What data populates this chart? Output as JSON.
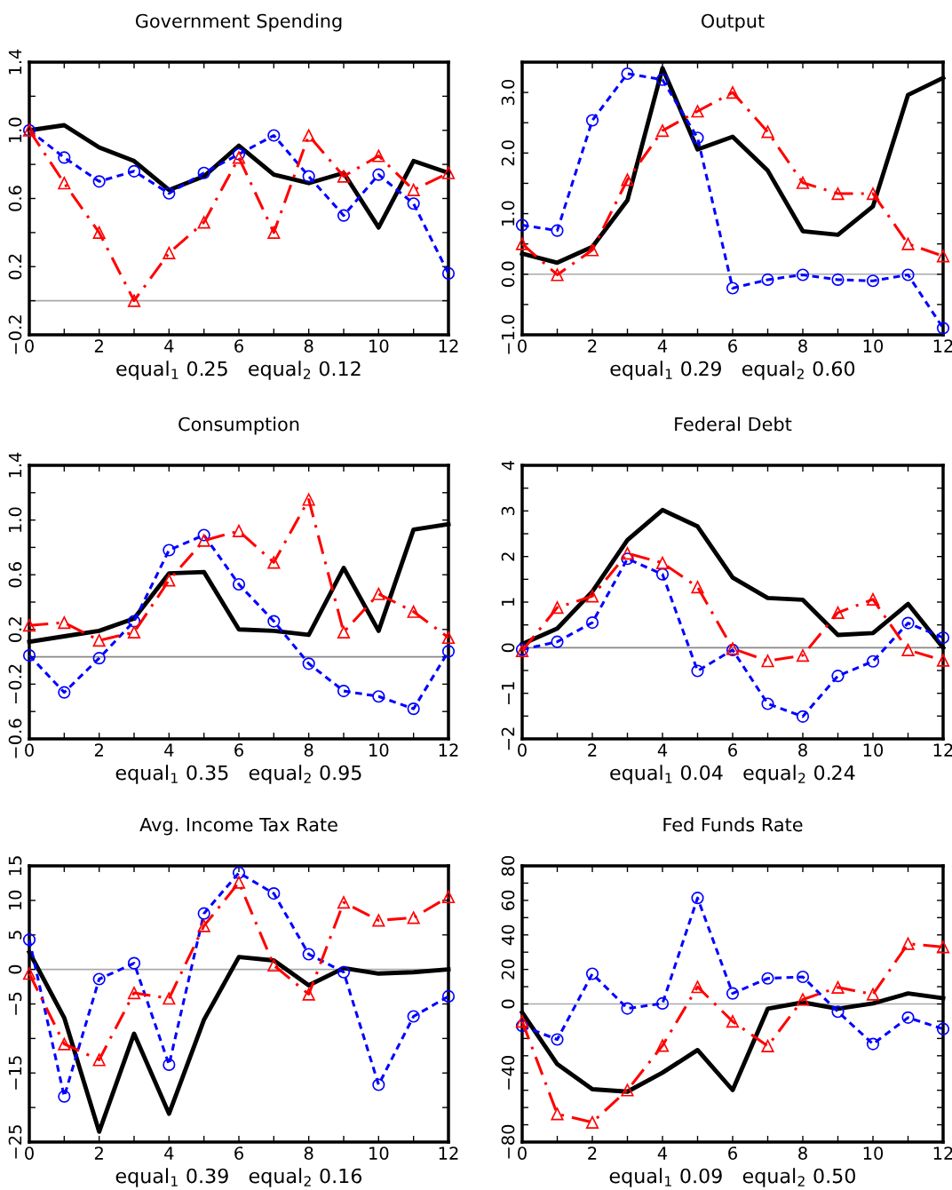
{
  "chart_data": [
    {
      "type": "line",
      "title": "Government Spending",
      "xlabel": "equal$_{1}$ 0.25   equal$_{2}$ 0.12",
      "x": [
        0,
        1,
        2,
        3,
        4,
        5,
        6,
        7,
        8,
        9,
        10,
        11,
        12
      ],
      "xlim": [
        0,
        12
      ],
      "xticks": [
        0,
        {
          "value": 1,
          "label": null
        },
        2,
        {
          "value": 3,
          "label": null
        },
        4,
        {
          "value": 5,
          "label": null
        },
        6,
        {
          "value": 7,
          "label": null
        },
        8,
        {
          "value": 9,
          "label": null
        },
        10,
        {
          "value": 11,
          "label": null
        },
        12
      ],
      "ylim": [
        -0.2,
        1.4
      ],
      "yticks": [
        {
          "value": -0.2,
          "label": "−0.2"
        },
        {
          "value": 0.0,
          "label": null
        },
        0.2,
        {
          "value": 0.4,
          "label": null
        },
        0.6,
        {
          "value": 0.8,
          "label": null
        },
        {
          "value": 1.0,
          "label": "1.0"
        },
        {
          "value": 1.2,
          "label": null
        },
        1.4
      ],
      "ref_lines": [
        {
          "axis": "y",
          "value": 0,
          "color": "#aaaaaa"
        }
      ],
      "series": [
        {
          "color": "#000000",
          "line_style": "solid",
          "marker": "none",
          "values": [
            1.0,
            1.03,
            0.9,
            0.82,
            0.65,
            0.73,
            0.91,
            0.74,
            0.69,
            0.75,
            0.43,
            0.82,
            0.75
          ]
        },
        {
          "color": "#0000ff",
          "line_style": "dotted",
          "marker": "circle",
          "values": [
            1.0,
            0.84,
            0.7,
            0.76,
            0.63,
            0.75,
            0.86,
            0.97,
            0.73,
            0.5,
            0.74,
            0.57,
            0.16
          ]
        },
        {
          "color": "#ff0000",
          "line_style": "dashed",
          "marker": "triangle",
          "values": [
            1.0,
            0.69,
            0.4,
            0.0,
            0.28,
            0.46,
            0.84,
            0.4,
            0.97,
            0.73,
            0.85,
            0.65,
            0.75
          ]
        }
      ]
    },
    {
      "type": "line",
      "title": "Output",
      "xlabel": "equal$_{1}$ 0.29   equal$_{2}$ 0.60",
      "x": [
        0,
        1,
        2,
        3,
        4,
        5,
        6,
        7,
        8,
        9,
        10,
        11,
        12
      ],
      "xlim": [
        0,
        12
      ],
      "xticks": [
        0,
        {
          "value": 1,
          "label": null
        },
        2,
        {
          "value": 3,
          "label": null
        },
        4,
        {
          "value": 5,
          "label": null
        },
        6,
        {
          "value": 7,
          "label": null
        },
        8,
        {
          "value": 9,
          "label": null
        },
        10,
        {
          "value": 11,
          "label": null
        },
        12
      ],
      "ylim": [
        -1.0,
        3.5
      ],
      "yticks": [
        {
          "value": -1.0,
          "label": "−1.0"
        },
        {
          "value": -0.5,
          "label": null
        },
        {
          "value": 0.0,
          "label": "0.0"
        },
        {
          "value": 0.5,
          "label": null
        },
        {
          "value": 1.0,
          "label": "1.0"
        },
        {
          "value": 1.5,
          "label": null
        },
        {
          "value": 2.0,
          "label": "2.0"
        },
        {
          "value": 2.5,
          "label": null
        },
        {
          "value": 3.0,
          "label": "3.0"
        }
      ],
      "ref_lines": [
        {
          "axis": "y",
          "value": 0,
          "color": "#aaaaaa"
        }
      ],
      "series": [
        {
          "color": "#000000",
          "line_style": "solid",
          "marker": "none",
          "values": [
            0.34,
            0.19,
            0.45,
            1.22,
            3.4,
            2.06,
            2.27,
            1.71,
            0.71,
            0.65,
            1.12,
            2.96,
            3.24
          ]
        },
        {
          "color": "#0000ff",
          "line_style": "dotted",
          "marker": "circle",
          "values": [
            0.81,
            0.72,
            2.54,
            3.31,
            3.21,
            2.25,
            -0.23,
            -0.09,
            -0.01,
            -0.09,
            -0.11,
            -0.01,
            -0.89
          ]
        },
        {
          "color": "#ff0000",
          "line_style": "dashed",
          "marker": "triangle",
          "values": [
            0.5,
            -0.01,
            0.4,
            1.56,
            2.37,
            2.69,
            3.0,
            2.35,
            1.51,
            1.33,
            1.33,
            0.5,
            0.3
          ]
        }
      ]
    },
    {
      "type": "line",
      "title": "Consumption",
      "xlabel": "equal$_{1}$ 0.35   equal$_{2}$ 0.95",
      "x": [
        0,
        1,
        2,
        3,
        4,
        5,
        6,
        7,
        8,
        9,
        10,
        11,
        12
      ],
      "xlim": [
        0,
        12
      ],
      "xticks": [
        0,
        {
          "value": 1,
          "label": null
        },
        2,
        {
          "value": 3,
          "label": null
        },
        4,
        {
          "value": 5,
          "label": null
        },
        6,
        {
          "value": 7,
          "label": null
        },
        8,
        {
          "value": 9,
          "label": null
        },
        10,
        {
          "value": 11,
          "label": null
        },
        12
      ],
      "ylim": [
        -0.6,
        1.4
      ],
      "yticks": [
        {
          "value": -0.6,
          "label": "−0.6"
        },
        {
          "value": -0.4,
          "label": null
        },
        {
          "value": -0.2,
          "label": "−0.2"
        },
        {
          "value": 0.0,
          "label": null
        },
        0.2,
        {
          "value": 0.4,
          "label": null
        },
        0.6,
        {
          "value": 0.8,
          "label": null
        },
        {
          "value": 1.0,
          "label": "1.0"
        },
        {
          "value": 1.2,
          "label": null
        },
        1.4
      ],
      "ref_lines": [
        {
          "axis": "y",
          "value": 0,
          "color": "#888888"
        }
      ],
      "series": [
        {
          "color": "#000000",
          "line_style": "solid",
          "marker": "none",
          "values": [
            0.11,
            0.15,
            0.19,
            0.28,
            0.61,
            0.62,
            0.2,
            0.19,
            0.16,
            0.65,
            0.19,
            0.93,
            0.97
          ]
        },
        {
          "color": "#0000ff",
          "line_style": "dotted",
          "marker": "circle",
          "values": [
            0.01,
            -0.26,
            -0.01,
            0.26,
            0.78,
            0.89,
            0.53,
            0.26,
            -0.05,
            -0.25,
            -0.29,
            -0.38,
            0.04
          ]
        },
        {
          "color": "#ff0000",
          "line_style": "dashed",
          "marker": "triangle",
          "values": [
            0.23,
            0.25,
            0.12,
            0.18,
            0.56,
            0.85,
            0.92,
            0.69,
            1.15,
            0.18,
            0.46,
            0.33,
            0.14
          ]
        }
      ]
    },
    {
      "type": "line",
      "title": "Federal Debt",
      "xlabel": "equal$_{1}$ 0.04   equal$_{2}$ 0.24",
      "x": [
        0,
        1,
        2,
        3,
        4,
        5,
        6,
        7,
        8,
        9,
        10,
        11,
        12
      ],
      "xlim": [
        0,
        12
      ],
      "xticks": [
        0,
        {
          "value": 1,
          "label": null
        },
        2,
        {
          "value": 3,
          "label": null
        },
        4,
        {
          "value": 5,
          "label": null
        },
        6,
        {
          "value": 7,
          "label": null
        },
        8,
        {
          "value": 9,
          "label": null
        },
        10,
        {
          "value": 11,
          "label": null
        },
        12
      ],
      "ylim": [
        -2,
        4
      ],
      "yticks": [
        {
          "value": -2,
          "label": "−2"
        },
        {
          "value": -1.5,
          "label": null
        },
        {
          "value": -1,
          "label": "−1"
        },
        {
          "value": -0.5,
          "label": null
        },
        0,
        {
          "value": 0.5,
          "label": null
        },
        1,
        {
          "value": 1.5,
          "label": null
        },
        2,
        {
          "value": 2.5,
          "label": null
        },
        3,
        {
          "value": 3.5,
          "label": null
        },
        4
      ],
      "ref_lines": [
        {
          "axis": "y",
          "value": 0,
          "color": "#888888"
        }
      ],
      "series": [
        {
          "color": "#000000",
          "line_style": "solid",
          "marker": "none",
          "values": [
            0.08,
            0.42,
            1.23,
            2.36,
            3.02,
            2.66,
            1.54,
            1.09,
            1.05,
            0.28,
            0.32,
            0.96,
            0.0
          ]
        },
        {
          "color": "#0000ff",
          "line_style": "dotted",
          "marker": "circle",
          "values": [
            -0.04,
            0.13,
            0.55,
            1.95,
            1.61,
            -0.51,
            -0.05,
            -1.23,
            -1.51,
            -0.62,
            -0.3,
            0.54,
            0.22
          ]
        },
        {
          "color": "#ff0000",
          "line_style": "dashed",
          "marker": "triangle",
          "values": [
            -0.07,
            0.88,
            1.13,
            2.07,
            1.86,
            1.33,
            -0.02,
            -0.29,
            -0.17,
            0.77,
            1.06,
            -0.05,
            -0.28
          ]
        }
      ]
    },
    {
      "type": "line",
      "title": "Avg. Income Tax Rate",
      "xlabel": "equal$_{1}$ 0.39   equal$_{2}$ 0.16",
      "x": [
        0,
        1,
        2,
        3,
        4,
        5,
        6,
        7,
        8,
        9,
        10,
        11,
        12
      ],
      "xlim": [
        0,
        12
      ],
      "xticks": [
        0,
        {
          "value": 1,
          "label": null
        },
        2,
        {
          "value": 3,
          "label": null
        },
        4,
        {
          "value": 5,
          "label": null
        },
        6,
        {
          "value": 7,
          "label": null
        },
        8,
        {
          "value": 9,
          "label": null
        },
        10,
        {
          "value": 11,
          "label": null
        },
        12
      ],
      "ylim": [
        -25,
        15
      ],
      "yticks": [
        {
          "value": -25,
          "label": "−25"
        },
        {
          "value": -20,
          "label": null
        },
        {
          "value": -15,
          "label": "−15"
        },
        {
          "value": -10,
          "label": null
        },
        {
          "value": -5,
          "label": "−5"
        },
        0,
        5,
        10,
        15
      ],
      "ref_lines": [
        {
          "axis": "y",
          "value": 0,
          "color": "#aaaaaa"
        }
      ],
      "series": [
        {
          "color": "#000000",
          "line_style": "solid",
          "marker": "none",
          "values": [
            2.5,
            -7.0,
            -23.5,
            -9.3,
            -20.9,
            -7.3,
            1.8,
            1.3,
            -2.3,
            0.2,
            -0.6,
            -0.4,
            0.0
          ]
        },
        {
          "color": "#0000ff",
          "line_style": "dotted",
          "marker": "circle",
          "values": [
            4.3,
            -18.4,
            -1.4,
            0.9,
            -13.8,
            8.1,
            14.0,
            11.0,
            2.2,
            -0.4,
            -16.7,
            -6.8,
            -3.9
          ]
        },
        {
          "color": "#ff0000",
          "line_style": "dashed",
          "marker": "triangle",
          "values": [
            -0.6,
            -10.8,
            -13.1,
            -3.4,
            -4.2,
            6.3,
            12.6,
            0.6,
            -3.6,
            9.7,
            7.1,
            7.5,
            10.5
          ]
        }
      ]
    },
    {
      "type": "line",
      "title": "Fed Funds Rate",
      "xlabel": "equal$_{1}$ 0.09   equal$_{2}$ 0.50",
      "x": [
        0,
        1,
        2,
        3,
        4,
        5,
        6,
        7,
        8,
        9,
        10,
        11,
        12
      ],
      "xlim": [
        0,
        12
      ],
      "xticks": [
        0,
        {
          "value": 1,
          "label": null
        },
        2,
        {
          "value": 3,
          "label": null
        },
        4,
        {
          "value": 5,
          "label": null
        },
        6,
        {
          "value": 7,
          "label": null
        },
        8,
        {
          "value": 9,
          "label": null
        },
        10,
        {
          "value": 11,
          "label": null
        },
        12
      ],
      "ylim": [
        -80,
        80
      ],
      "yticks": [
        {
          "value": -80,
          "label": "−80"
        },
        {
          "value": -70,
          "label": null
        },
        {
          "value": -60,
          "label": null
        },
        {
          "value": -50,
          "label": null
        },
        {
          "value": -40,
          "label": "−40"
        },
        {
          "value": -30,
          "label": null
        },
        {
          "value": -20,
          "label": null
        },
        {
          "value": -10,
          "label": null
        },
        0,
        {
          "value": 10,
          "label": null
        },
        20,
        {
          "value": 30,
          "label": null
        },
        40,
        {
          "value": 50,
          "label": null
        },
        60,
        {
          "value": 70,
          "label": null
        },
        80
      ],
      "ref_lines": [
        {
          "axis": "y",
          "value": 0,
          "color": "#aaaaaa"
        }
      ],
      "series": [
        {
          "color": "#000000",
          "line_style": "solid",
          "marker": "none",
          "values": [
            -4.9,
            -34.9,
            -49.4,
            -50.8,
            -39.8,
            -26.7,
            -49.9,
            -2.8,
            0.9,
            -2.8,
            0.3,
            6.1,
            3.3
          ]
        },
        {
          "color": "#0000ff",
          "line_style": "dotted",
          "marker": "circle",
          "values": [
            -12.7,
            -20.6,
            17.5,
            -2.6,
            0.3,
            61.4,
            6.1,
            14.8,
            15.7,
            -4.5,
            -23.2,
            -7.9,
            -14.5
          ]
        },
        {
          "color": "#ff0000",
          "line_style": "dashed",
          "marker": "triangle",
          "values": [
            -10.1,
            -63.7,
            -68.6,
            -49.9,
            -24.1,
            9.9,
            -10.1,
            -24.4,
            2.6,
            9.6,
            5.6,
            34.9,
            33.0
          ]
        }
      ]
    }
  ]
}
